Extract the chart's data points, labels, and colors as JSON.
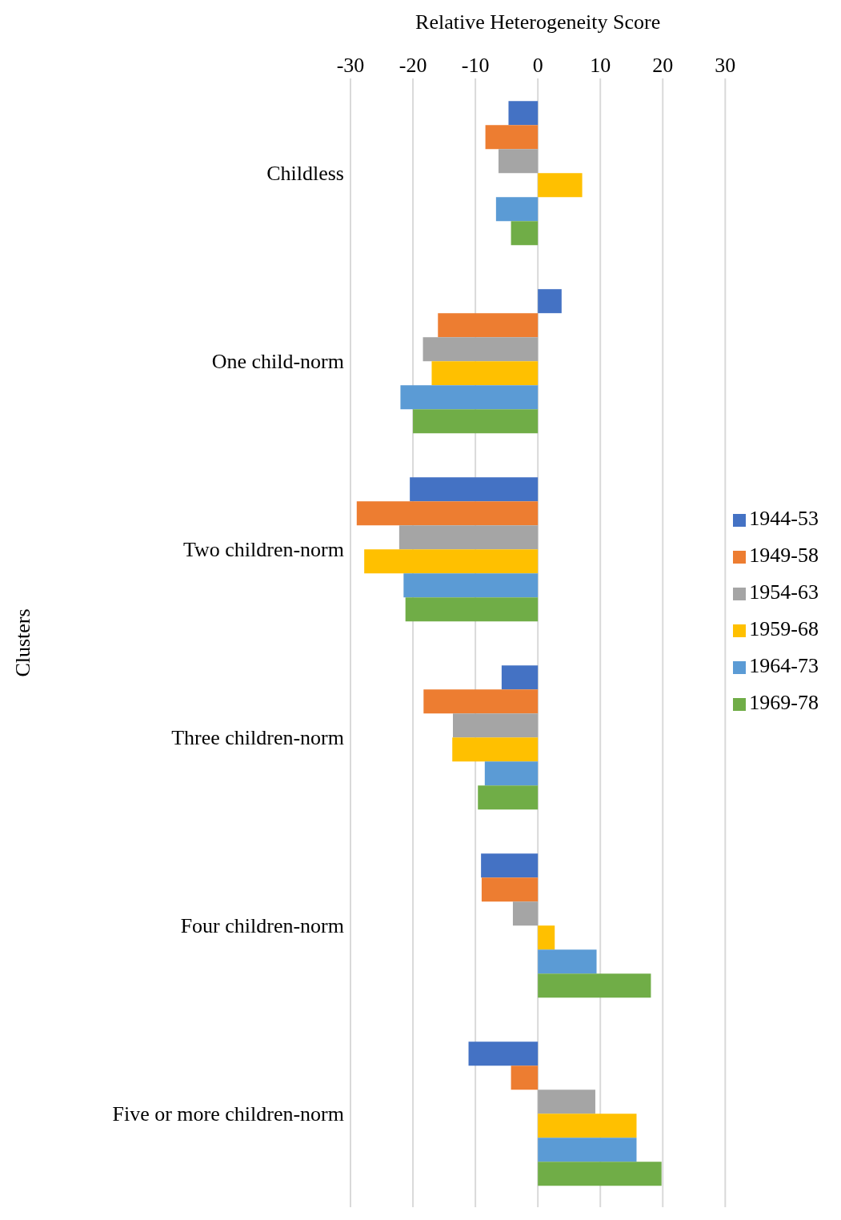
{
  "chart_data": {
    "type": "bar",
    "orientation": "horizontal",
    "xlabel": "Relative Heterogeneity Score",
    "ylabel": "Clusters",
    "categories": [
      "Childless",
      "One child-norm",
      "Two children-norm",
      "Three children-norm",
      "Four children-norm",
      "Five or more children-norm"
    ],
    "xlim": [
      -30,
      30
    ],
    "xticks": [
      -30,
      -20,
      -10,
      0,
      10,
      20,
      30
    ],
    "grid": "x",
    "legend": "right",
    "series": [
      {
        "name": "1944-53",
        "color": "#4472c4",
        "values": [
          -4.7,
          3.8,
          -20.5,
          -5.8,
          -9.1,
          -11.1
        ]
      },
      {
        "name": "1949-58",
        "color": "#ed7d31",
        "values": [
          -8.4,
          -16.0,
          -29.0,
          -18.3,
          -9.0,
          -4.3
        ]
      },
      {
        "name": "1954-63",
        "color": "#a5a5a5",
        "values": [
          -6.3,
          -18.4,
          -22.2,
          -13.6,
          -4.0,
          9.2
        ]
      },
      {
        "name": "1959-68",
        "color": "#ffc000",
        "values": [
          7.1,
          -17.0,
          -27.8,
          -13.7,
          2.7,
          15.8
        ]
      },
      {
        "name": "1964-73",
        "color": "#5b9bd5",
        "values": [
          -6.7,
          -22.0,
          -21.5,
          -8.5,
          9.4,
          15.8
        ]
      },
      {
        "name": "1969-78",
        "color": "#70ad47",
        "values": [
          -4.3,
          -20.0,
          -21.2,
          -9.6,
          18.1,
          19.8
        ]
      }
    ]
  }
}
